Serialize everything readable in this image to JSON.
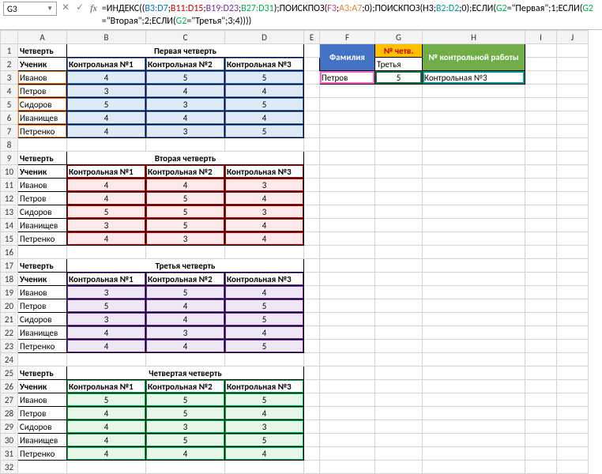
{
  "cellref": "G3",
  "formula": {
    "p0": "=ИНДЕКС((",
    "r1": "B3:D7",
    "s1": ";",
    "r2": "B11:D15",
    "s2": ";",
    "r3": "B19:D23",
    "s3": ";",
    "r4": "B27:D31",
    "p1": ");ПОИСКПОЗ(",
    "f3": "F3",
    "s4": ";",
    "a3a7": "A3:A7",
    "p2": ";",
    "z1": "0",
    "p3": ");ПОИСКПОЗ(",
    "h3": "H3",
    "s5": ";",
    "b2d2": "B2:D2",
    "s6": ";",
    "z2": "0",
    "p4": ");ЕСЛИ(",
    "g2a": "G2",
    "eq1": "=\"Первая\";",
    "one": "1",
    "p5": ";ЕСЛИ(",
    "g2b": "G2",
    "eq2": "=\"Вторая\";",
    "two": "2",
    "p6": ";ЕСЛИ(",
    "g2c": "G2",
    "eq3": "=\"Третья\";",
    "three": "3",
    "p7": ";",
    "four": "4",
    "p8": "))))"
  },
  "cols": [
    "A",
    "B",
    "C",
    "D",
    "E",
    "F",
    "G",
    "H",
    "I",
    "J"
  ],
  "rowcount": 32,
  "labels": {
    "quarter": "Четверть",
    "student": "Ученик",
    "k1": "Контрольная №1",
    "k2": "Контрольная №2",
    "k3": "Контрольная №3"
  },
  "quarters": [
    {
      "title": "Первая четверть",
      "bg": "bg-lblue",
      "box": "b-blue"
    },
    {
      "title": "Вторая четверть",
      "bg": "bg-lred",
      "box": "b-red"
    },
    {
      "title": "Третья четверть",
      "bg": "bg-lpur",
      "box": "b-purple"
    },
    {
      "title": "Четвертая четверть",
      "bg": "bg-lgrn",
      "box": "b-green"
    }
  ],
  "students": [
    "Иванов",
    "Петров",
    "Сидоров",
    "Иванищев",
    "Петренко"
  ],
  "data": [
    [
      [
        4,
        5,
        5
      ],
      [
        3,
        4,
        4
      ],
      [
        5,
        3,
        5
      ],
      [
        4,
        4,
        4
      ],
      [
        4,
        3,
        5
      ]
    ],
    [
      [
        4,
        4,
        3
      ],
      [
        4,
        5,
        4
      ],
      [
        5,
        5,
        3
      ],
      [
        3,
        5,
        4
      ],
      [
        4,
        3,
        4
      ]
    ],
    [
      [
        3,
        5,
        4
      ],
      [
        5,
        4,
        5
      ],
      [
        3,
        4,
        5
      ],
      [
        4,
        3,
        4
      ],
      [
        4,
        4,
        5
      ]
    ],
    [
      [
        5,
        5,
        5
      ],
      [
        4,
        5,
        4
      ],
      [
        4,
        3,
        3
      ],
      [
        4,
        5,
        5
      ],
      [
        4,
        4,
        4
      ]
    ]
  ],
  "lookup": {
    "h_f": "Фамилия",
    "h_g": "№ четв.",
    "h_h": "№ контрольной работы",
    "v_f": "Петров",
    "v_g2": "Третья",
    "v_g3": "5",
    "v_h": "Контрольная №3"
  }
}
